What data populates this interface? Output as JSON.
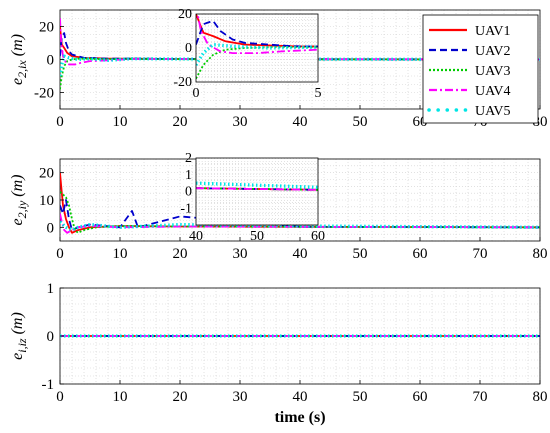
{
  "chart_data": [
    {
      "type": "line",
      "ylabel": "e_{2,ix} (m)",
      "ylabel_main": "e",
      "ylabel_sub": "2,ix",
      "ylabel_unit": "(m)",
      "xlim": [
        0,
        80
      ],
      "ylim": [
        -30,
        30
      ],
      "xticks": [
        "0",
        "10",
        "20",
        "30",
        "40",
        "50",
        "60",
        "70",
        "80"
      ],
      "yticks": [
        "20",
        "0",
        "-20"
      ],
      "grid": true,
      "legend_placement": "top-right",
      "series": [
        {
          "name": "UAV1",
          "color": "#ff0000",
          "style": "solid",
          "x": [
            0,
            0.3,
            0.7,
            1.2,
            2,
            3,
            4,
            6,
            8,
            12,
            20,
            40,
            80
          ],
          "y": [
            20,
            9,
            7,
            4,
            2,
            1.5,
            1,
            0.8,
            0.5,
            0.5,
            0.3,
            0.2,
            0
          ]
        },
        {
          "name": "UAV2",
          "color": "#0000cc",
          "style": "dashed",
          "x": [
            0,
            0.3,
            0.7,
            1.0,
            1.5,
            2,
            3,
            4,
            6,
            8,
            12,
            20,
            40,
            80
          ],
          "y": [
            2,
            14,
            16,
            10,
            5,
            3,
            2,
            1,
            0.8,
            0.5,
            0.5,
            0.3,
            0.2,
            0
          ]
        },
        {
          "name": "UAV3",
          "color": "#00cc00",
          "style": "dotted",
          "x": [
            0,
            0.3,
            0.7,
            1.2,
            2,
            3,
            4,
            6,
            8,
            12,
            20,
            40,
            80
          ],
          "y": [
            -18,
            -10,
            -4,
            -1,
            0,
            0.5,
            0.5,
            0.3,
            0.2,
            0.3,
            0.2,
            0.1,
            0
          ]
        },
        {
          "name": "UAV4",
          "color": "#ff00ff",
          "style": "dashdot",
          "x": [
            0,
            0.2,
            0.5,
            1.0,
            1.5,
            2.5,
            3.5,
            5,
            8,
            12,
            20,
            40,
            80
          ],
          "y": [
            25,
            10,
            2,
            -2,
            -3,
            -3,
            -2,
            -1,
            -0.5,
            0.3,
            0.3,
            0.2,
            0
          ]
        },
        {
          "name": "UAV5",
          "color": "#00e5e5",
          "style": "markers",
          "x": [
            0,
            0.3,
            0.7,
            1.5,
            3,
            5,
            8,
            12,
            20,
            40,
            80
          ],
          "y": [
            -10,
            -3,
            2,
            1,
            0,
            0.5,
            -0.5,
            0.5,
            0.3,
            0.2,
            0
          ]
        }
      ],
      "inset": {
        "xlim": [
          0,
          5
        ],
        "ylim": [
          -20,
          20
        ],
        "xticks": [
          "0",
          "5"
        ],
        "yticks": [
          "20",
          "0",
          "-20"
        ]
      }
    },
    {
      "type": "line",
      "ylabel": "e_{2,iy} (m)",
      "ylabel_main": "e",
      "ylabel_sub": "2,iy",
      "ylabel_unit": "(m)",
      "xlim": [
        0,
        80
      ],
      "ylim": [
        -5,
        25
      ],
      "xticks": [
        "0",
        "10",
        "20",
        "30",
        "40",
        "50",
        "60",
        "70",
        "80"
      ],
      "yticks": [
        "20",
        "10",
        "0"
      ],
      "grid": true,
      "series": [
        {
          "name": "UAV1",
          "color": "#ff0000",
          "style": "solid",
          "x": [
            0,
            0.2,
            0.5,
            1,
            1.5,
            2,
            3,
            5,
            10,
            20,
            40,
            80
          ],
          "y": [
            20,
            15,
            8,
            3,
            0,
            -2,
            -1,
            0,
            0.5,
            0.3,
            0.2,
            0
          ]
        },
        {
          "name": "UAV2",
          "color": "#0000cc",
          "style": "dashed",
          "x": [
            0,
            0.5,
            1,
            1.5,
            2,
            3,
            5,
            10,
            12,
            13,
            20,
            40,
            80
          ],
          "y": [
            8,
            5,
            10,
            3,
            -1,
            0,
            1,
            0,
            6,
            0,
            4,
            0.2,
            0
          ]
        },
        {
          "name": "UAV3",
          "color": "#00cc00",
          "style": "dotted",
          "x": [
            0,
            0.5,
            1,
            1.5,
            2,
            2.5,
            3,
            4,
            6,
            10,
            20,
            40,
            80
          ],
          "y": [
            13,
            12,
            11,
            8,
            3,
            -1,
            -2,
            -1,
            0,
            0.5,
            0.3,
            0.2,
            0
          ]
        },
        {
          "name": "UAV4",
          "color": "#ff00ff",
          "style": "dashdot",
          "x": [
            0,
            0.3,
            0.7,
            1.2,
            2,
            3,
            5,
            10,
            20,
            40,
            80
          ],
          "y": [
            5,
            2,
            -1,
            -2,
            -1,
            0,
            0.5,
            0,
            0.3,
            0.2,
            0
          ]
        },
        {
          "name": "UAV5",
          "color": "#00e5e5",
          "style": "markers",
          "x": [
            0,
            0.5,
            1,
            2,
            3,
            5,
            10,
            20,
            40,
            80
          ],
          "y": [
            2,
            1,
            0,
            -1,
            0,
            1,
            0,
            1,
            0.5,
            0
          ]
        }
      ],
      "inset": {
        "xlim": [
          40,
          60
        ],
        "ylim": [
          -2,
          2
        ],
        "xticks": [
          "40",
          "50",
          "60"
        ],
        "yticks": [
          "2",
          "1",
          "0",
          "-1"
        ]
      }
    },
    {
      "type": "line",
      "ylabel": "e_{i,iz} (m)",
      "ylabel_main": "e",
      "ylabel_sub": "i,iz",
      "ylabel_unit": "(m)",
      "xlabel": "time (s)",
      "xlim": [
        0,
        80
      ],
      "ylim": [
        -1,
        1
      ],
      "xticks": [
        "0",
        "10",
        "20",
        "30",
        "40",
        "50",
        "60",
        "70",
        "80"
      ],
      "yticks": [
        "1",
        "0",
        "-1"
      ],
      "grid": true,
      "series": [
        {
          "name": "UAV1",
          "color": "#ff0000",
          "style": "solid",
          "x": [
            0,
            80
          ],
          "y": [
            0,
            0
          ]
        },
        {
          "name": "UAV2",
          "color": "#0000cc",
          "style": "dashed",
          "x": [
            0,
            80
          ],
          "y": [
            0,
            0
          ]
        },
        {
          "name": "UAV3",
          "color": "#00cc00",
          "style": "dotted",
          "x": [
            0,
            80
          ],
          "y": [
            0,
            0
          ]
        },
        {
          "name": "UAV4",
          "color": "#ff00ff",
          "style": "dashdot",
          "x": [
            0,
            80
          ],
          "y": [
            0,
            0
          ]
        },
        {
          "name": "UAV5",
          "color": "#00e5e5",
          "style": "markers",
          "x": [
            0,
            80
          ],
          "y": [
            0,
            0
          ]
        }
      ]
    }
  ]
}
